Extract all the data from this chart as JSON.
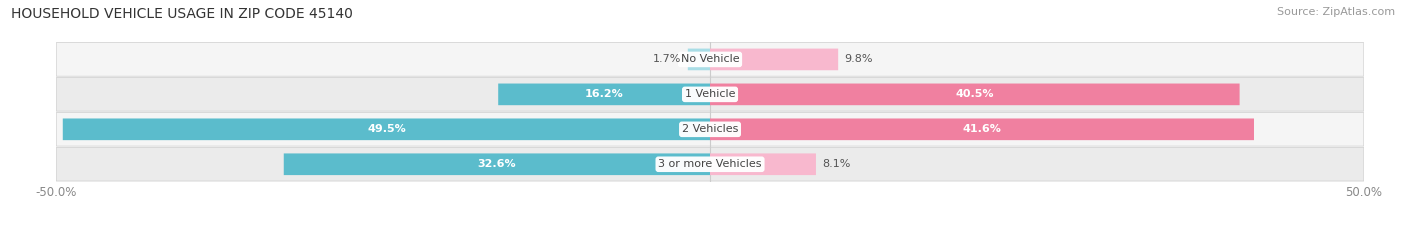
{
  "title": "HOUSEHOLD VEHICLE USAGE IN ZIP CODE 45140",
  "source": "Source: ZipAtlas.com",
  "categories": [
    "No Vehicle",
    "1 Vehicle",
    "2 Vehicles",
    "3 or more Vehicles"
  ],
  "owner_values": [
    1.7,
    16.2,
    49.5,
    32.6
  ],
  "renter_values": [
    9.8,
    40.5,
    41.6,
    8.1
  ],
  "owner_color": "#5bbccc",
  "renter_color": "#f080a0",
  "owner_color_light": "#a8dde6",
  "renter_color_light": "#f8b8ce",
  "row_bg_even": "#f2f2f2",
  "row_bg_odd": "#e8e8e8",
  "x_min": -50.0,
  "x_max": 50.0,
  "title_fontsize": 10,
  "source_fontsize": 8,
  "label_fontsize": 8,
  "cat_fontsize": 8,
  "tick_fontsize": 8.5,
  "legend_fontsize": 8.5,
  "bar_height": 0.62
}
